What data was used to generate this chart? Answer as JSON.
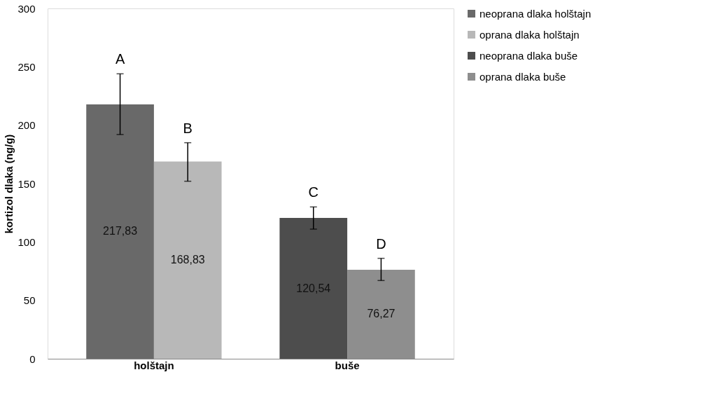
{
  "chart_data": {
    "type": "bar",
    "categories": [
      "holštajn",
      "buše"
    ],
    "ylabel": "kortizol dlaka (ng/g)",
    "ylim": [
      0,
      300
    ],
    "yticks": [
      0,
      50,
      100,
      150,
      200,
      250,
      300
    ],
    "grid": false,
    "legend": "right",
    "series": [
      {
        "name": "neoprana dlaka holštajn",
        "color": "#696969",
        "values": [
          217.83,
          null
        ],
        "errors": [
          [
            192,
            244
          ],
          null
        ],
        "value_labels": [
          "217,83",
          null
        ]
      },
      {
        "name": "oprana dlaka holštajn",
        "color": "#b8b8b8",
        "values": [
          168.83,
          null
        ],
        "errors": [
          [
            152,
            185
          ],
          null
        ],
        "value_labels": [
          "168,83",
          null
        ]
      },
      {
        "name": "neoprana dlaka buše",
        "color": "#4d4d4d",
        "values": [
          null,
          120.54
        ],
        "errors": [
          null,
          [
            111,
            130
          ]
        ],
        "value_labels": [
          null,
          "120,54"
        ]
      },
      {
        "name": "oprana dlaka buše",
        "color": "#8e8e8e",
        "values": [
          null,
          76.27
        ],
        "errors": [
          null,
          [
            67,
            86
          ]
        ],
        "value_labels": [
          null,
          "76,27"
        ]
      }
    ],
    "annotations": [
      "A",
      "B",
      "C",
      "D"
    ]
  }
}
